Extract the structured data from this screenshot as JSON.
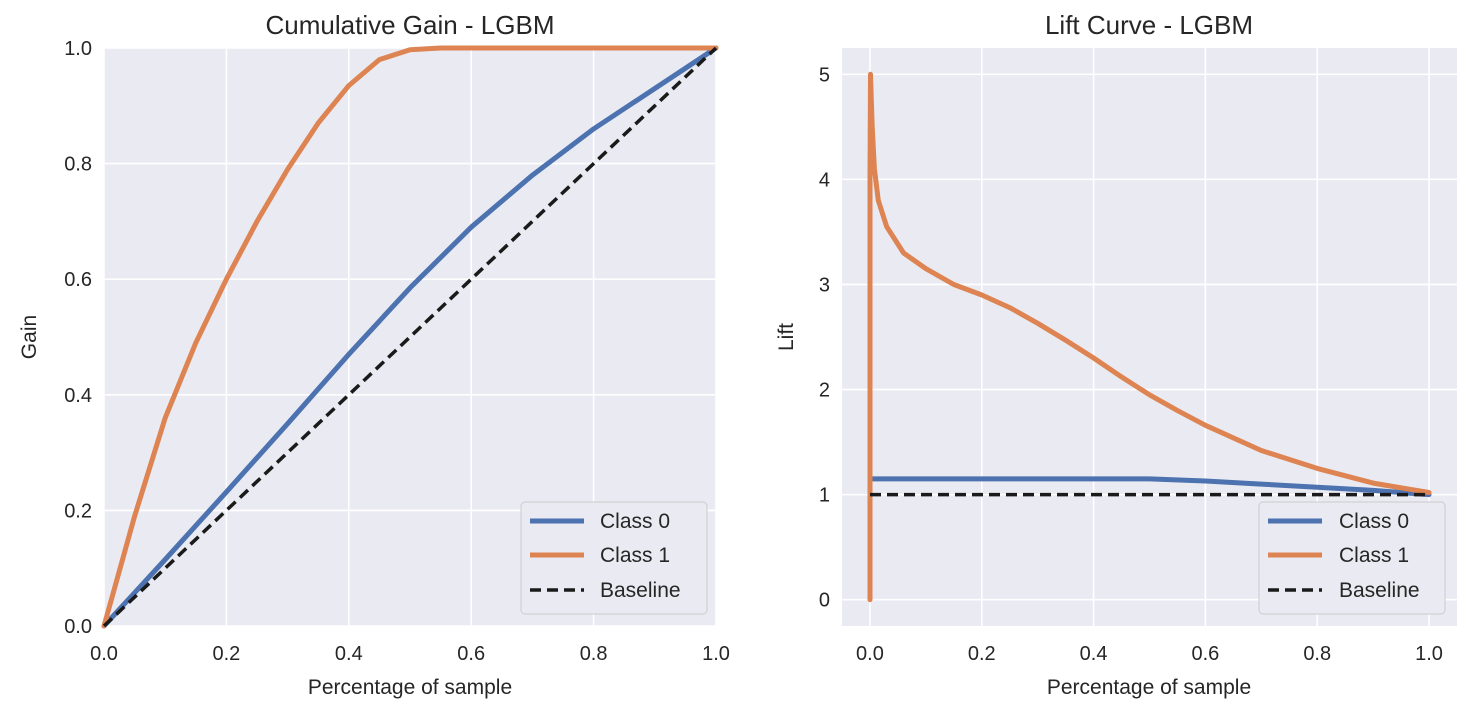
{
  "chart_data": [
    {
      "type": "line",
      "title": "Cumulative Gain - LGBM",
      "xlabel": "Percentage of sample",
      "ylabel": "Gain",
      "xlim": [
        0,
        1
      ],
      "ylim": [
        0,
        1
      ],
      "xticks": [
        "0.0",
        "0.2",
        "0.4",
        "0.6",
        "0.8",
        "1.0"
      ],
      "yticks": [
        "0.0",
        "0.2",
        "0.4",
        "0.6",
        "0.8",
        "1.0"
      ],
      "grid": true,
      "legend_position": "bottom-right",
      "series": [
        {
          "name": "Class 0",
          "color": "#4c72b0",
          "style": "solid",
          "x": [
            0,
            0.1,
            0.2,
            0.3,
            0.4,
            0.5,
            0.6,
            0.7,
            0.8,
            0.9,
            1.0
          ],
          "y": [
            0,
            0.115,
            0.232,
            0.35,
            0.47,
            0.585,
            0.69,
            0.78,
            0.86,
            0.93,
            1.0
          ]
        },
        {
          "name": "Class 1",
          "color": "#dd8452",
          "style": "solid",
          "x": [
            0,
            0.05,
            0.1,
            0.15,
            0.2,
            0.25,
            0.3,
            0.35,
            0.4,
            0.45,
            0.5,
            0.55,
            0.6,
            0.7,
            0.8,
            0.9,
            1.0
          ],
          "y": [
            0,
            0.19,
            0.36,
            0.49,
            0.6,
            0.7,
            0.79,
            0.87,
            0.935,
            0.98,
            0.997,
            1.0,
            1.0,
            1.0,
            1.0,
            1.0,
            1.0
          ]
        },
        {
          "name": "Baseline",
          "color": "#1a1a1a",
          "style": "dashed",
          "x": [
            0,
            1
          ],
          "y": [
            0,
            1
          ]
        }
      ]
    },
    {
      "type": "line",
      "title": "Lift Curve - LGBM",
      "xlabel": "Percentage of sample",
      "ylabel": "Lift",
      "xlim": [
        -0.05,
        1.05
      ],
      "ylim": [
        -0.25,
        5.25
      ],
      "xticks": [
        "0.0",
        "0.2",
        "0.4",
        "0.6",
        "0.8",
        "1.0"
      ],
      "yticks": [
        "0",
        "1",
        "2",
        "3",
        "4",
        "5"
      ],
      "grid": true,
      "legend_position": "bottom-right",
      "series": [
        {
          "name": "Class 0",
          "color": "#4c72b0",
          "style": "solid",
          "x": [
            0,
            0.1,
            0.2,
            0.3,
            0.4,
            0.5,
            0.6,
            0.7,
            0.8,
            0.9,
            1.0
          ],
          "y": [
            1.15,
            1.15,
            1.15,
            1.15,
            1.15,
            1.15,
            1.13,
            1.1,
            1.07,
            1.04,
            1.0
          ]
        },
        {
          "name": "Class 1",
          "color": "#dd8452",
          "style": "solid",
          "x": [
            0,
            0,
            0.001,
            0.004,
            0.008,
            0.015,
            0.03,
            0.06,
            0.1,
            0.15,
            0.2,
            0.25,
            0.3,
            0.35,
            0.4,
            0.45,
            0.5,
            0.55,
            0.6,
            0.7,
            0.8,
            0.9,
            1.0
          ],
          "y": [
            0,
            4.0,
            5.0,
            4.5,
            4.1,
            3.8,
            3.55,
            3.3,
            3.15,
            3.0,
            2.9,
            2.78,
            2.63,
            2.47,
            2.3,
            2.12,
            1.95,
            1.8,
            1.66,
            1.42,
            1.25,
            1.11,
            1.02
          ]
        },
        {
          "name": "Baseline",
          "color": "#1a1a1a",
          "style": "dashed",
          "x": [
            0,
            1
          ],
          "y": [
            1,
            1
          ]
        }
      ]
    }
  ]
}
